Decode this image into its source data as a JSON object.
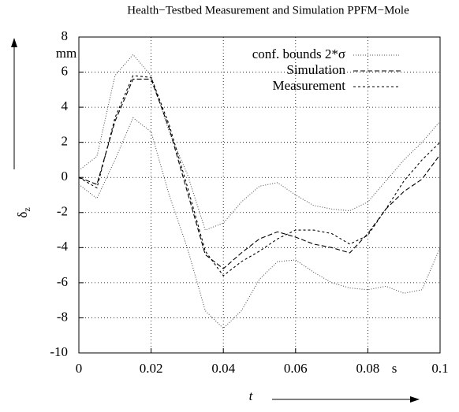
{
  "chart_data": {
    "type": "line",
    "title": "Health−Testbed Measurement and Simulation PPFM−Mole",
    "x_label": "t",
    "y_label": "δ",
    "y_label_sub": "z",
    "x_unit": "s",
    "y_unit": "mm",
    "x": [
      0,
      0.005,
      0.01,
      0.015,
      0.02,
      0.025,
      0.03,
      0.035,
      0.04,
      0.045,
      0.05,
      0.055,
      0.06,
      0.065,
      0.07,
      0.075,
      0.08,
      0.085,
      0.09,
      0.095,
      0.1
    ],
    "series": [
      {
        "name": "conf. bounds 2*σ",
        "color": "#555555",
        "dash": "1,2",
        "values": [
          0.4,
          1.2,
          5.8,
          7.0,
          5.8,
          2.6,
          0.2,
          -3.0,
          -2.6,
          -1.4,
          -0.5,
          -0.3,
          -1.0,
          -1.6,
          -1.8,
          -1.9,
          -1.4,
          -0.2,
          1.0,
          2.0,
          3.2
        ],
        "values_lower": [
          -0.4,
          -1.2,
          1.0,
          3.4,
          2.6,
          -1.0,
          -4.0,
          -7.6,
          -8.6,
          -7.6,
          -5.8,
          -4.8,
          -4.7,
          -5.4,
          -6.0,
          -6.3,
          -6.4,
          -6.2,
          -6.6,
          -6.4,
          -4.0
        ]
      },
      {
        "name": "Simulation",
        "color": "#000000",
        "dash": "6,3",
        "values": [
          0,
          -0.4,
          3.2,
          5.6,
          5.6,
          2.8,
          -0.8,
          -4.4,
          -5.2,
          -4.3,
          -3.5,
          -3.1,
          -3.4,
          -3.8,
          -4.0,
          -4.3,
          -3.2,
          -1.8,
          -0.8,
          -0.1,
          1.3
        ]
      },
      {
        "name": "Measurement",
        "color": "#000000",
        "dash": "3,3",
        "values": [
          0,
          -0.6,
          3.4,
          5.8,
          5.7,
          3.0,
          -0.5,
          -4.2,
          -5.6,
          -4.8,
          -4.2,
          -3.5,
          -3.0,
          -3.0,
          -3.2,
          -3.8,
          -3.3,
          -1.8,
          -0.2,
          1.0,
          2.0
        ]
      }
    ],
    "xlim": [
      0,
      0.1
    ],
    "xticks": [
      0,
      0.02,
      0.04,
      0.06,
      0.08,
      0.1
    ],
    "ylim": [
      -10,
      8
    ],
    "yticks": [
      -10,
      -8,
      -6,
      -4,
      -2,
      0,
      2,
      4,
      6,
      8
    ],
    "grid": true,
    "legend": "top-right"
  }
}
